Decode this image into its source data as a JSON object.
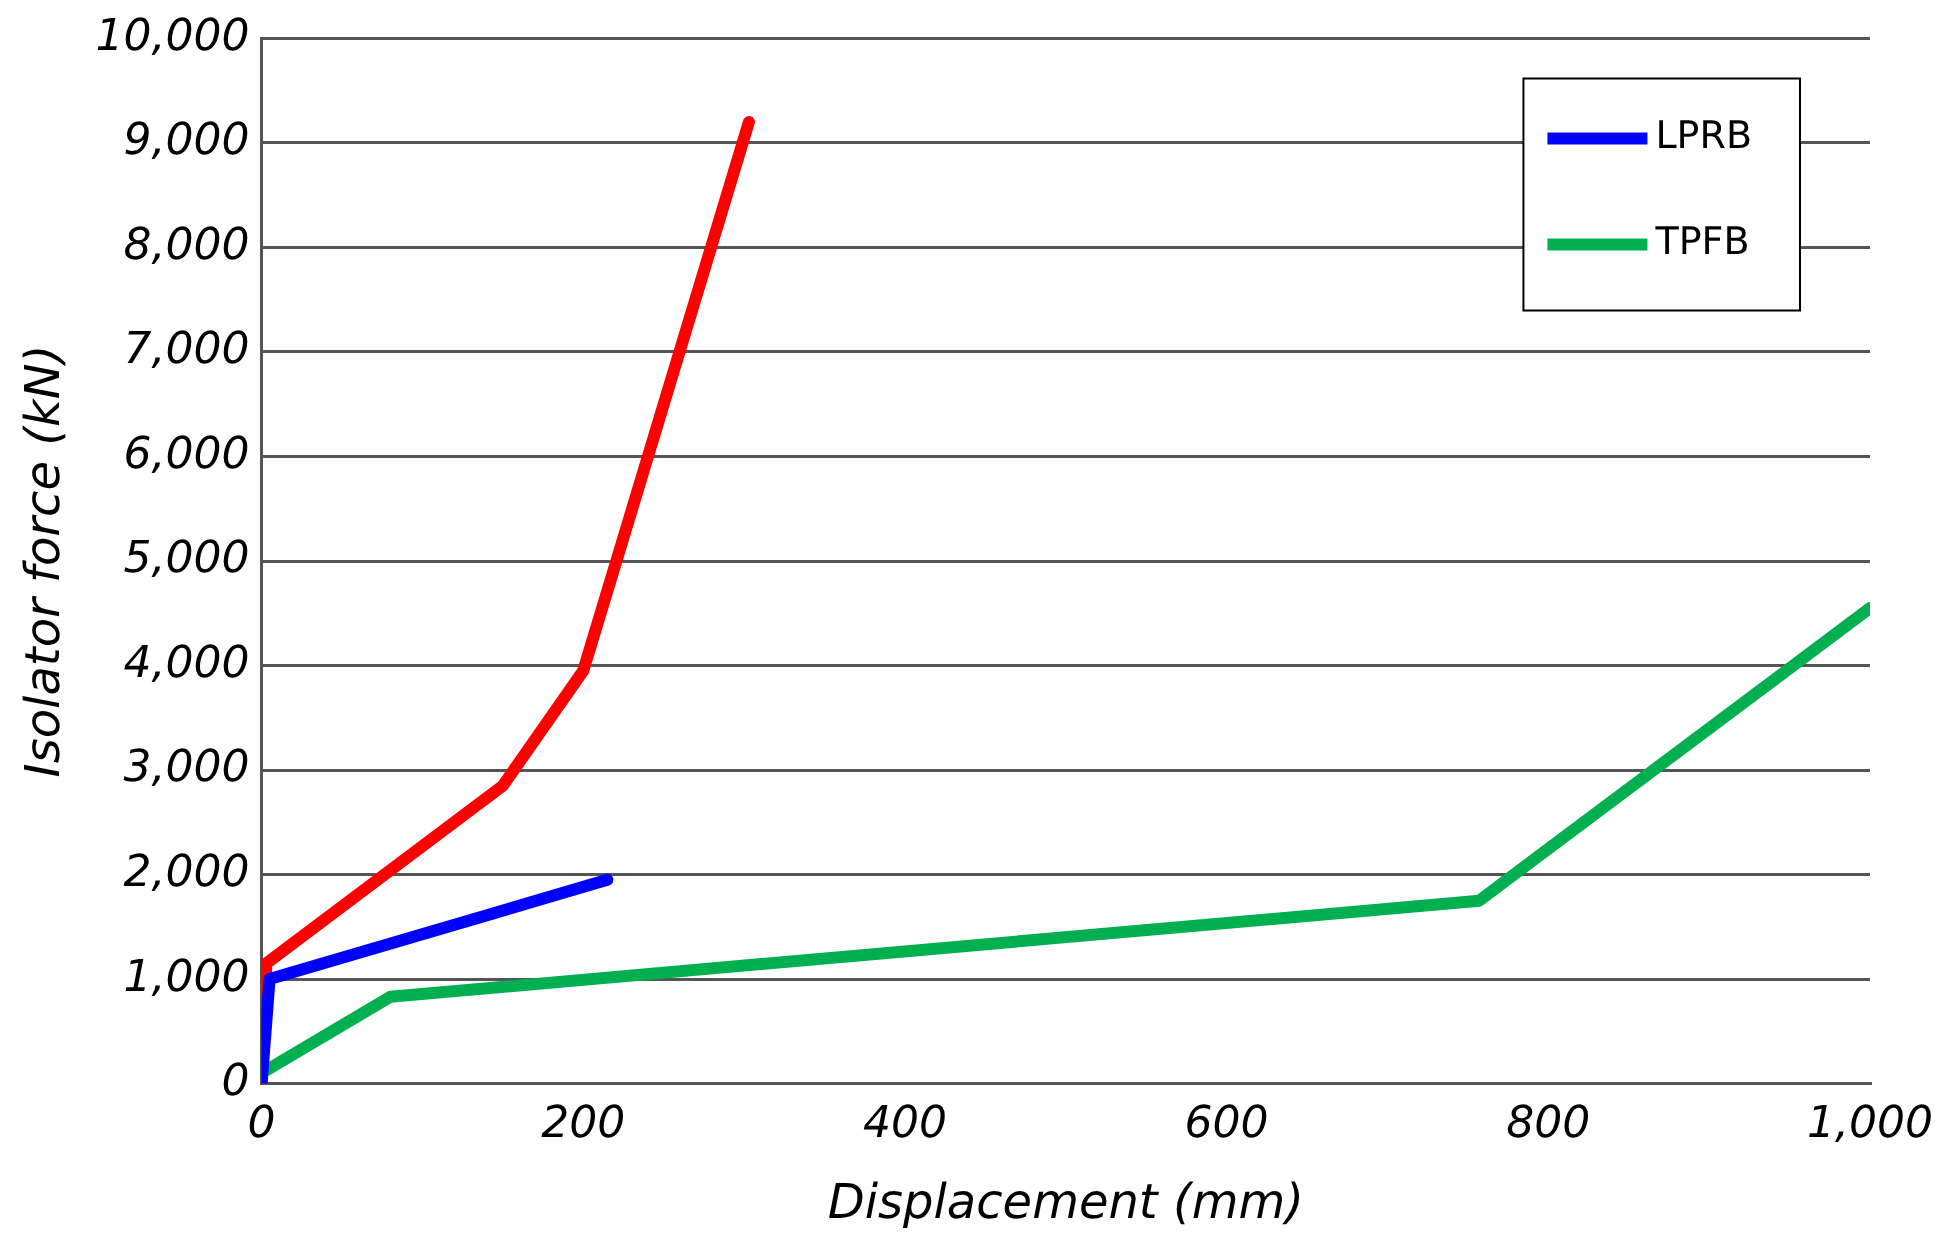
{
  "chart_data": {
    "type": "line",
    "xlabel": "Displacement (mm)",
    "ylabel": "Isolator force (kN)",
    "xlim": [
      0,
      1000
    ],
    "xticks": [
      0,
      200,
      400,
      600,
      800,
      {
        "value": 1000,
        "label": "1,000"
      }
    ],
    "ylim": [
      0,
      10000
    ],
    "yticks": [
      0,
      {
        "value": 1000,
        "label": "1,000"
      },
      {
        "value": 2000,
        "label": "2,000"
      },
      {
        "value": 3000,
        "label": "3,000"
      },
      {
        "value": 4000,
        "label": "4,000"
      },
      {
        "value": 5000,
        "label": "5,000"
      },
      {
        "value": 6000,
        "label": "6,000"
      },
      {
        "value": 7000,
        "label": "7,000"
      },
      {
        "value": 8000,
        "label": "8,000"
      },
      {
        "value": 9000,
        "label": "9,000"
      },
      {
        "value": 10000,
        "label": "10,000"
      }
    ],
    "grid": "y",
    "legend": "top right",
    "marker": "none",
    "line_style": "solid",
    "series": [
      {
        "name": "LPRB",
        "color": "#0000ff",
        "x": [
          0,
          5,
          215
        ],
        "values": [
          0,
          1000,
          1950
        ]
      },
      {
        "color": "#ff0000",
        "x": [
          0,
          3,
          150,
          200,
          303
        ],
        "values": [
          0,
          1150,
          2850,
          3950,
          9200
        ]
      },
      {
        "name": "TPFB",
        "color": "#00b050",
        "x": [
          0,
          80,
          757,
          1000
        ],
        "values": [
          100,
          830,
          1750,
          4550
        ]
      }
    ]
  }
}
